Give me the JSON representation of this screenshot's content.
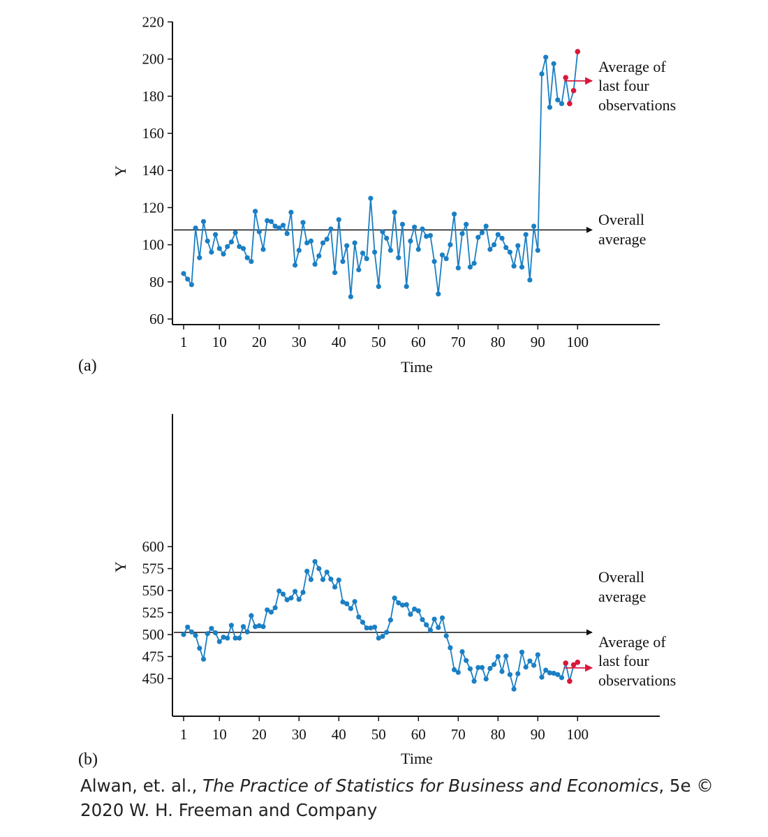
{
  "colors": {
    "line": "#1a7fc4",
    "highlight": "#d9183b",
    "axis": "#111111",
    "text": "#111111"
  },
  "chart_data": [
    {
      "type": "line",
      "panel_label": "(a)",
      "xlabel": "Time",
      "ylabel": "Y",
      "xlim": [
        1,
        100
      ],
      "ylim": [
        60,
        220
      ],
      "xticks": [
        1,
        10,
        20,
        30,
        40,
        50,
        60,
        70,
        80,
        90,
        100
      ],
      "yticks": [
        60,
        80,
        100,
        120,
        140,
        160,
        180,
        200,
        220
      ],
      "x": [
        1,
        2,
        3,
        4,
        5,
        6,
        7,
        8,
        9,
        10,
        11,
        12,
        13,
        14,
        15,
        16,
        17,
        18,
        19,
        20,
        21,
        22,
        23,
        24,
        25,
        26,
        27,
        28,
        29,
        30,
        31,
        32,
        33,
        34,
        35,
        36,
        37,
        38,
        39,
        40,
        41,
        42,
        43,
        44,
        45,
        46,
        47,
        48,
        49,
        50,
        51,
        52,
        53,
        54,
        55,
        56,
        57,
        58,
        59,
        60,
        61,
        62,
        63,
        64,
        65,
        66,
        67,
        68,
        69,
        70,
        71,
        72,
        73,
        74,
        75,
        76,
        77,
        78,
        79,
        80,
        81,
        82,
        83,
        84,
        85,
        86,
        87,
        88,
        89,
        90,
        91,
        92,
        93,
        94,
        95,
        96,
        97,
        98,
        99,
        100
      ],
      "values": [
        84.5,
        81.5,
        78.5,
        109,
        93,
        112.5,
        102,
        96,
        105.5,
        98,
        95,
        99,
        101.5,
        106.5,
        99,
        98,
        93,
        91,
        118,
        107,
        97.5,
        113,
        112.5,
        110,
        109,
        110.5,
        106,
        117.5,
        89,
        97,
        112,
        101,
        102,
        89.5,
        94,
        101,
        103,
        108.5,
        85,
        113.5,
        91,
        99.5,
        72,
        101,
        86.5,
        95.5,
        92.5,
        125,
        96,
        77.5,
        107,
        103.5,
        97,
        117.5,
        93,
        111,
        77.5,
        102,
        109.5,
        97.5,
        108.5,
        104.5,
        105,
        91,
        73.5,
        94.5,
        92.5,
        100,
        116.5,
        87.5,
        106,
        111,
        88,
        90,
        104,
        106.5,
        110,
        97.5,
        100,
        105.5,
        103.5,
        98.5,
        96,
        88.5,
        99.5,
        88,
        105.5,
        81,
        110,
        97,
        192,
        201,
        174,
        197.5,
        178,
        176,
        190,
        176,
        183,
        204
      ],
      "highlighted_points": [
        {
          "x": 97,
          "y": 190
        },
        {
          "x": 98,
          "y": 176
        },
        {
          "x": 99,
          "y": 183
        },
        {
          "x": 100,
          "y": 204
        }
      ],
      "overall_average": 108,
      "annotations": {
        "average": [
          "Overall",
          "average"
        ],
        "last_four": [
          "Average of",
          "last four",
          "observations"
        ]
      }
    },
    {
      "type": "line",
      "panel_label": "(b)",
      "xlabel": "Time",
      "ylabel": "Y",
      "xlim": [
        1,
        100
      ],
      "ylim": [
        425,
        600
      ],
      "xticks": [
        1,
        10,
        20,
        30,
        40,
        50,
        60,
        70,
        80,
        90,
        100
      ],
      "yticks": [
        450,
        475,
        500,
        525,
        550,
        575,
        600
      ],
      "x": [
        1,
        2,
        3,
        4,
        5,
        6,
        7,
        8,
        9,
        10,
        11,
        12,
        13,
        14,
        15,
        16,
        17,
        18,
        19,
        20,
        21,
        22,
        23,
        24,
        25,
        26,
        27,
        28,
        29,
        30,
        31,
        32,
        33,
        34,
        35,
        36,
        37,
        38,
        39,
        40,
        41,
        42,
        43,
        44,
        45,
        46,
        47,
        48,
        49,
        50,
        51,
        52,
        53,
        54,
        55,
        56,
        57,
        58,
        59,
        60,
        61,
        62,
        63,
        64,
        65,
        66,
        67,
        68,
        69,
        70,
        71,
        72,
        73,
        74,
        75,
        76,
        77,
        78,
        79,
        80,
        81,
        82,
        83,
        84,
        85,
        86,
        87,
        88,
        89,
        90,
        91,
        92,
        93,
        94,
        95,
        96,
        97,
        98,
        99,
        100
      ],
      "values": [
        500,
        508.5,
        503,
        499,
        484.5,
        472,
        501,
        507,
        502,
        492,
        497,
        496,
        510.5,
        496,
        496,
        509,
        503,
        521.5,
        509,
        510,
        509,
        528,
        525.5,
        530.5,
        549.5,
        546,
        539.5,
        541.5,
        549,
        540,
        548,
        572,
        562.5,
        583,
        575,
        562.5,
        571,
        563,
        554,
        562,
        537,
        535,
        529.5,
        537.5,
        520,
        514,
        507.5,
        507.5,
        508.5,
        496,
        498,
        502.5,
        516.5,
        541.5,
        536,
        533.5,
        534,
        523,
        529,
        527,
        517,
        511,
        505,
        517.5,
        508,
        519,
        498.5,
        485,
        460,
        457,
        480.5,
        470.5,
        461,
        447,
        462.5,
        462.5,
        449.5,
        461.5,
        466,
        475,
        458,
        475.5,
        454.5,
        438,
        455.5,
        480,
        463,
        470,
        465,
        477,
        451.5,
        459.5,
        456.5,
        456,
        454.5,
        451,
        467.5,
        447,
        465.5,
        468.5
      ],
      "highlighted_points": [
        {
          "x": 97,
          "y": 467.5
        },
        {
          "x": 98,
          "y": 447
        },
        {
          "x": 99,
          "y": 465.5
        },
        {
          "x": 100,
          "y": 468.5
        }
      ],
      "overall_average": 502.5,
      "annotations": {
        "average": [
          "Overall",
          "average"
        ],
        "last_four": [
          "Average of",
          "last four",
          "observations"
        ]
      }
    }
  ],
  "caption": {
    "author": "Alwan, et. al., ",
    "book_title": "The Practice of Statistics for Business and Economics",
    "edition_line1": ", 5e ©",
    "line2": "2020 W. H. Freeman and Company"
  }
}
